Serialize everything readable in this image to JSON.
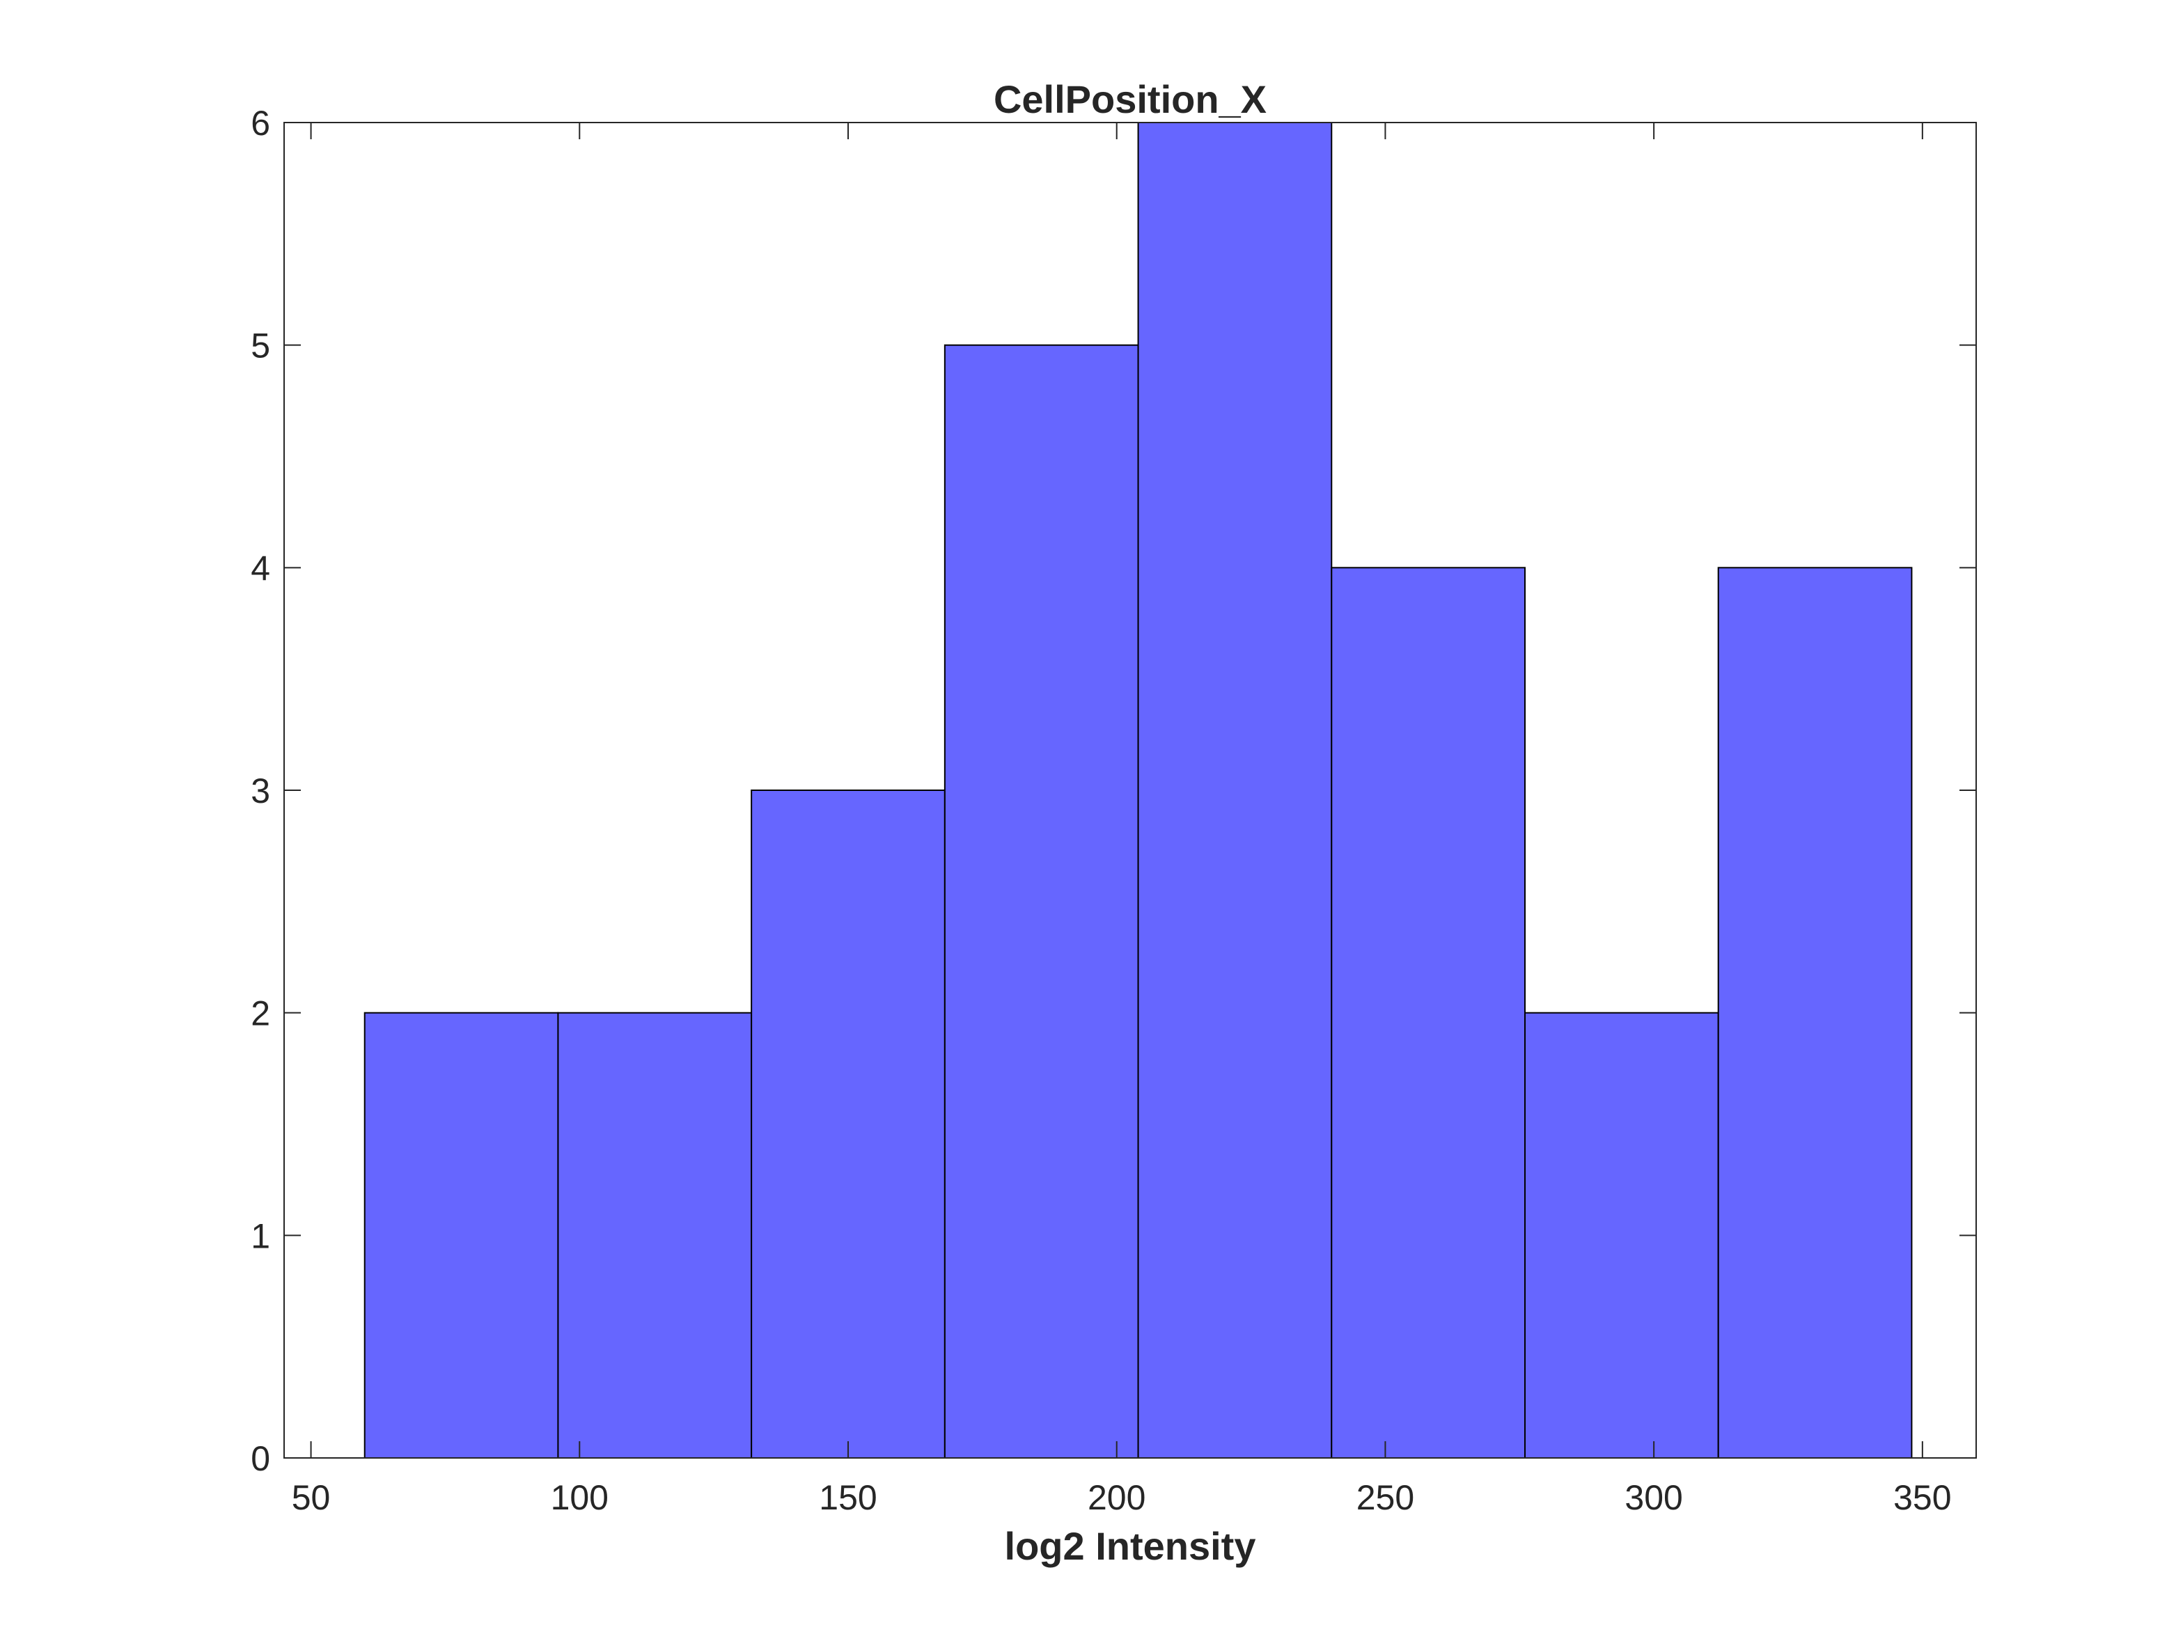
{
  "chart_data": {
    "type": "bar",
    "title": "CellPosition_X",
    "xlabel": "log2 Intensity",
    "ylabel": "",
    "xlim": [
      45,
      360
    ],
    "ylim": [
      0,
      6
    ],
    "xticks": [
      50,
      100,
      150,
      200,
      250,
      300,
      350
    ],
    "yticks": [
      0,
      1,
      2,
      3,
      4,
      5,
      6
    ],
    "bin_edges": [
      60,
      96,
      132,
      168,
      204,
      240,
      276,
      312,
      348
    ],
    "values": [
      2,
      2,
      3,
      5,
      6,
      4,
      2,
      4
    ],
    "grid": false,
    "legend": "none",
    "colors": {
      "bar_fill": "#6666ff",
      "bar_edge": "#000000",
      "axis": "#262626"
    }
  }
}
